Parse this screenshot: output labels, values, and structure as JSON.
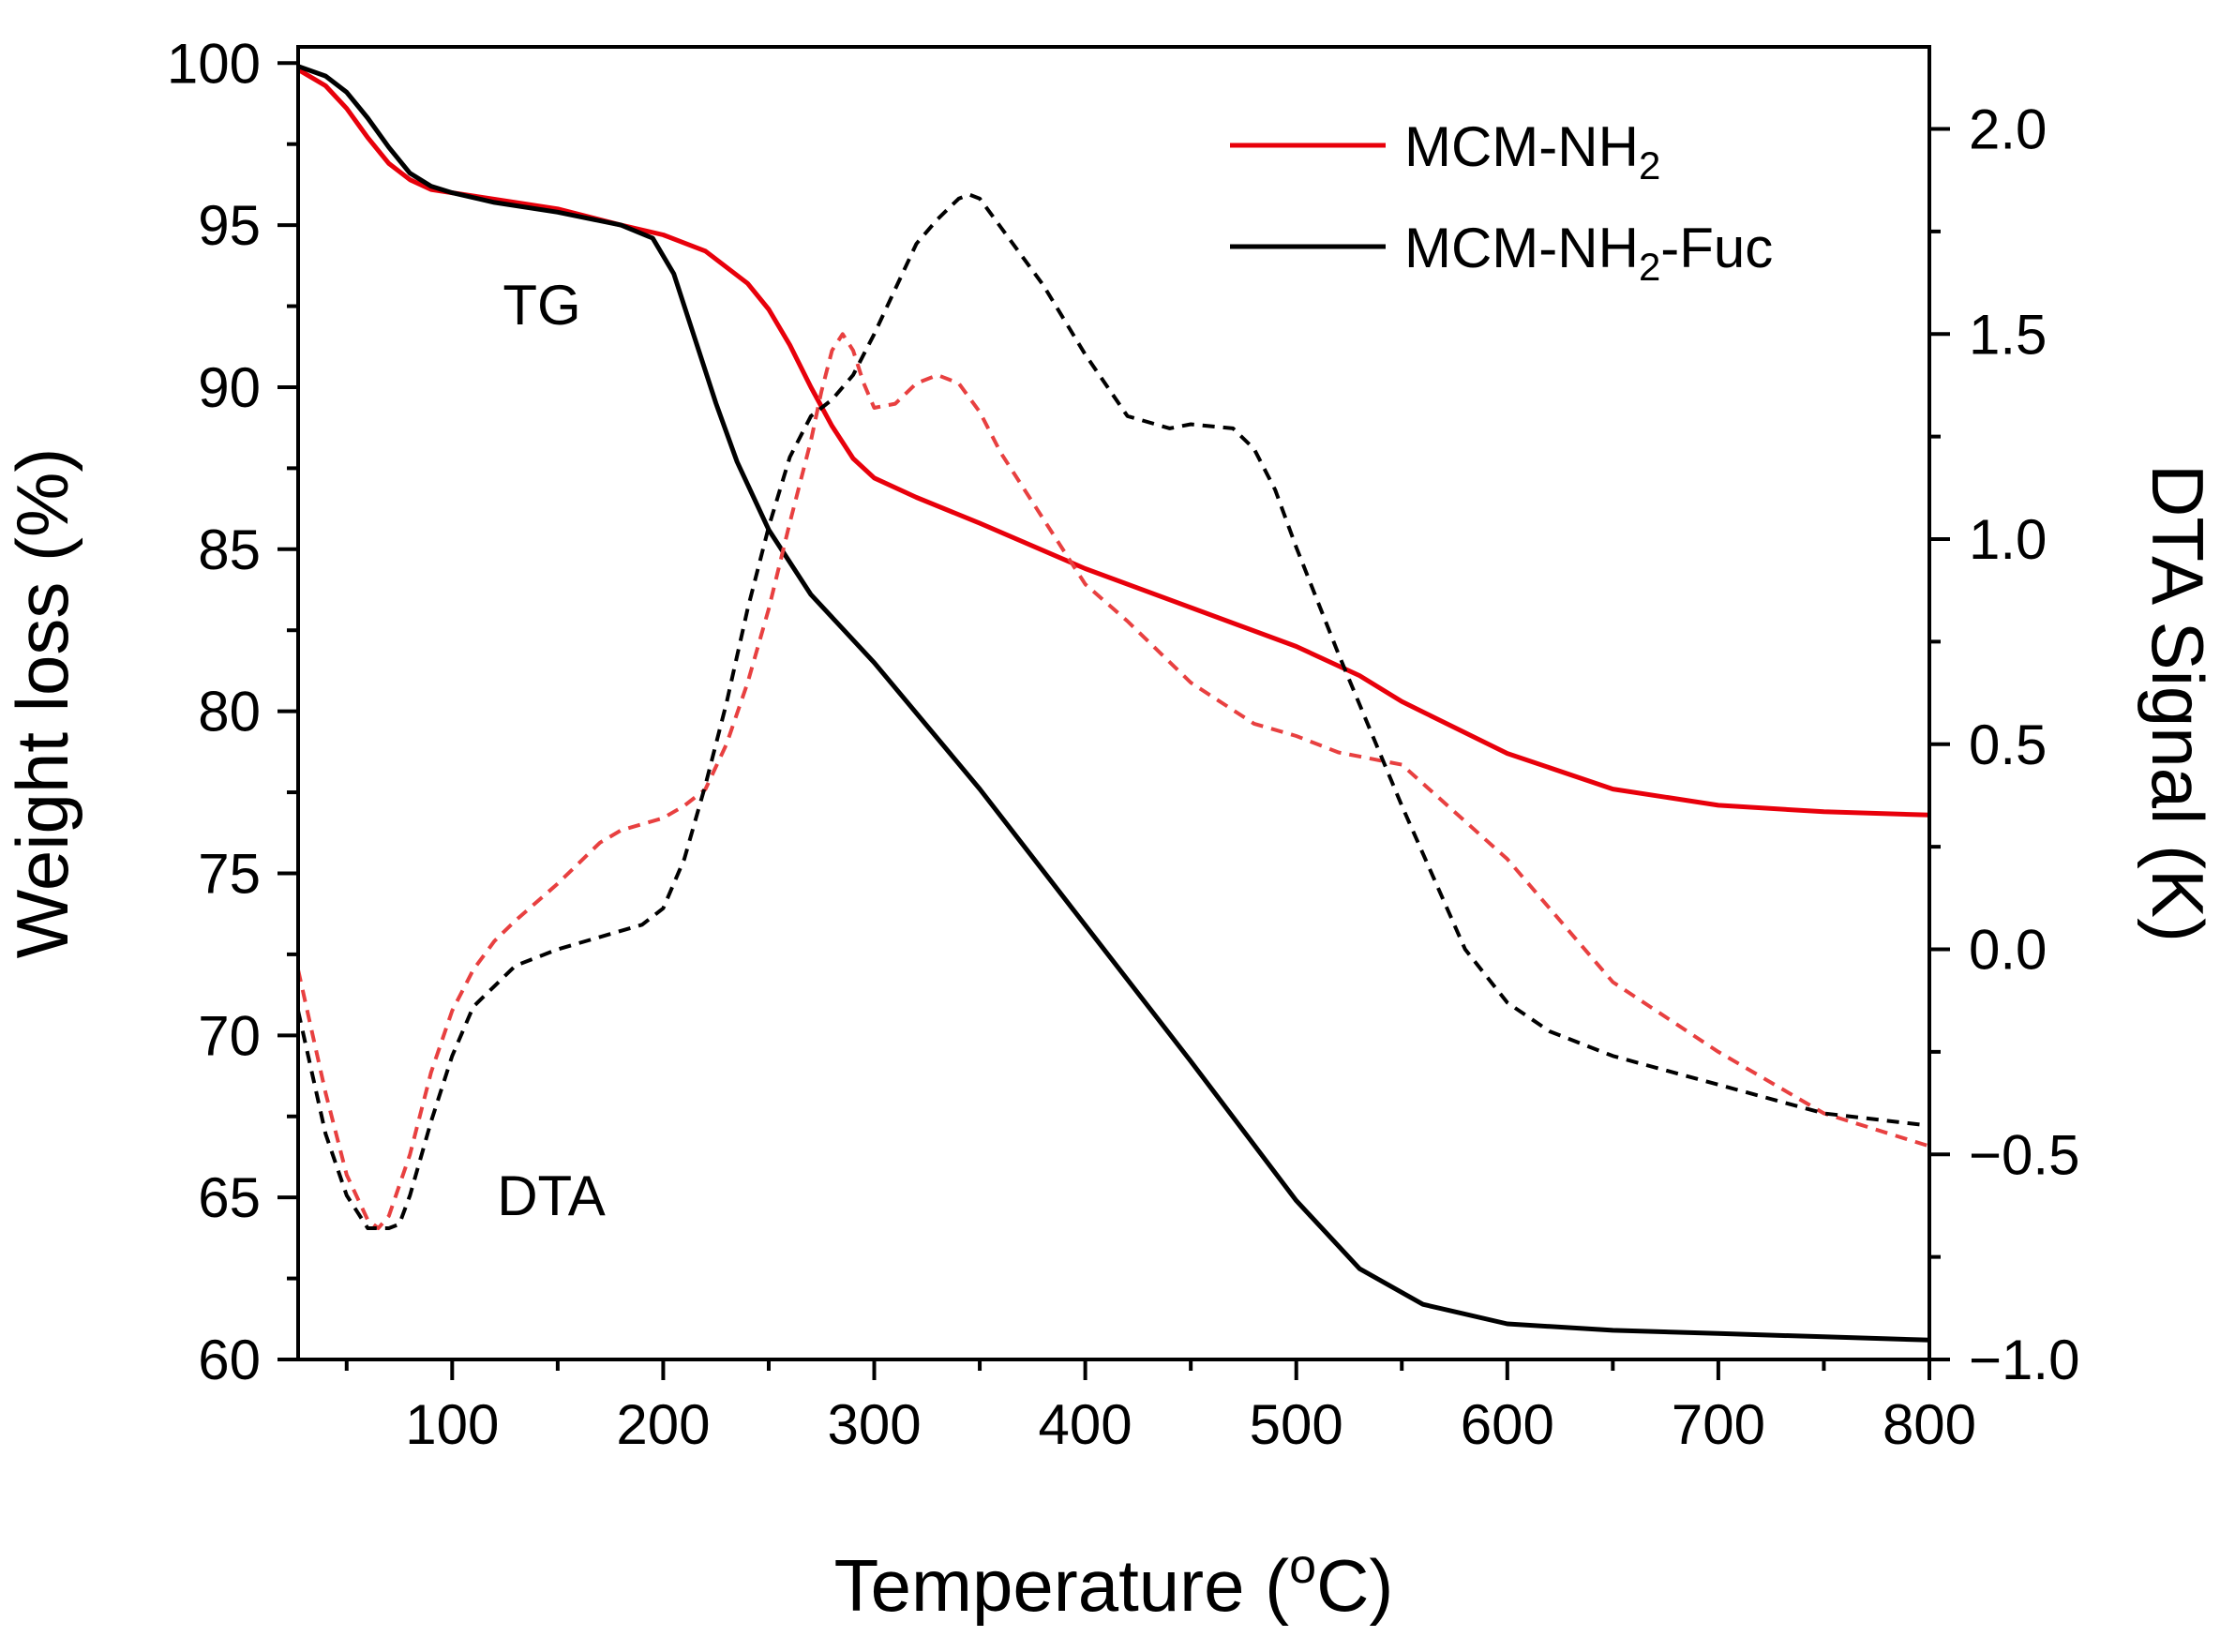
{
  "chart_data": {
    "type": "line",
    "xlabel": "Temperature (°C)",
    "xlabel_parts": [
      "Temperature (",
      "o",
      "C)"
    ],
    "ylabel_left": "Weight loss (%)",
    "ylabel_right": "DTA Signal (K)",
    "xlim": [
      27,
      800
    ],
    "ylim_left": [
      60,
      100.5
    ],
    "ylim_right": [
      -1.0,
      2.2
    ],
    "x_ticks": [
      100,
      200,
      300,
      400,
      500,
      600,
      700,
      800
    ],
    "y_left_ticks": [
      60,
      65,
      70,
      75,
      80,
      85,
      90,
      95,
      100
    ],
    "y_right_ticks": [
      -1.0,
      -0.5,
      0.0,
      0.5,
      1.0,
      1.5,
      2.0
    ],
    "y_right_tick_labels": [
      "−1.0",
      "−0.5",
      "0.0",
      "0.5",
      "1.0",
      "1.5",
      "2.0"
    ],
    "grid": false,
    "legend_position": "top-right",
    "legend": [
      {
        "base": "MCM-NH",
        "sub": "2",
        "suffix": "",
        "color": "#e8000b",
        "style": "solid"
      },
      {
        "base": "MCM-NH",
        "sub": "2",
        "suffix": "-Fuc",
        "color": "#000000",
        "style": "solid"
      }
    ],
    "annotations": {
      "tg": "TG",
      "dta": "DTA"
    },
    "series": [
      {
        "curve": "TG",
        "sample": "MCM-NH2",
        "axis": "left",
        "color": "#e8000b",
        "dash": false,
        "x": [
          27,
          40,
          50,
          60,
          70,
          80,
          90,
          100,
          120,
          150,
          180,
          200,
          220,
          240,
          250,
          260,
          270,
          280,
          290,
          300,
          320,
          350,
          400,
          450,
          500,
          530,
          550,
          600,
          650,
          700,
          750,
          800
        ],
        "y": [
          99.8,
          99.3,
          98.6,
          97.7,
          96.9,
          96.4,
          96.1,
          96.0,
          95.8,
          95.5,
          95.0,
          94.7,
          94.2,
          93.2,
          92.4,
          91.3,
          90.0,
          88.8,
          87.8,
          87.2,
          86.6,
          85.8,
          84.4,
          83.2,
          82.0,
          81.1,
          80.3,
          78.7,
          77.6,
          77.1,
          76.9,
          76.8
        ]
      },
      {
        "curve": "TG",
        "sample": "MCM-NH2-Fuc",
        "axis": "left",
        "color": "#000000",
        "dash": false,
        "x": [
          27,
          40,
          50,
          60,
          70,
          80,
          90,
          100,
          120,
          150,
          180,
          195,
          205,
          215,
          225,
          235,
          250,
          270,
          300,
          350,
          400,
          450,
          500,
          530,
          560,
          600,
          650,
          700,
          750,
          800
        ],
        "y": [
          99.9,
          99.6,
          99.1,
          98.3,
          97.4,
          96.6,
          96.2,
          96.0,
          95.7,
          95.4,
          95.0,
          94.6,
          93.5,
          91.5,
          89.5,
          87.7,
          85.6,
          83.6,
          81.5,
          77.6,
          73.4,
          69.2,
          64.9,
          62.8,
          61.7,
          61.1,
          60.9,
          60.8,
          60.7,
          60.6
        ]
      },
      {
        "curve": "DTA",
        "sample": "MCM-NH2",
        "axis": "right",
        "color": "#e84040",
        "dash": true,
        "x": [
          27,
          40,
          50,
          60,
          65,
          70,
          80,
          90,
          100,
          110,
          120,
          130,
          150,
          170,
          180,
          200,
          210,
          220,
          230,
          240,
          250,
          260,
          270,
          275,
          280,
          285,
          290,
          295,
          300,
          310,
          320,
          330,
          340,
          350,
          360,
          380,
          400,
          420,
          450,
          480,
          500,
          520,
          550,
          600,
          650,
          700,
          750,
          800
        ],
        "y": [
          -0.05,
          -0.35,
          -0.55,
          -0.66,
          -0.68,
          -0.65,
          -0.5,
          -0.3,
          -0.15,
          -0.05,
          0.02,
          0.07,
          0.16,
          0.26,
          0.29,
          0.32,
          0.35,
          0.39,
          0.5,
          0.65,
          0.83,
          1.04,
          1.24,
          1.36,
          1.46,
          1.5,
          1.46,
          1.38,
          1.32,
          1.33,
          1.38,
          1.4,
          1.38,
          1.31,
          1.21,
          1.05,
          0.89,
          0.8,
          0.65,
          0.55,
          0.52,
          0.48,
          0.45,
          0.22,
          -0.08,
          -0.25,
          -0.4,
          -0.48
        ]
      },
      {
        "curve": "DTA",
        "sample": "MCM-NH2-Fuc",
        "axis": "right",
        "color": "#000000",
        "dash": true,
        "x": [
          27,
          40,
          50,
          60,
          70,
          75,
          80,
          90,
          100,
          110,
          120,
          130,
          150,
          170,
          190,
          200,
          210,
          220,
          230,
          240,
          250,
          260,
          270,
          280,
          290,
          300,
          310,
          320,
          330,
          340,
          345,
          350,
          360,
          380,
          400,
          420,
          440,
          450,
          470,
          480,
          490,
          500,
          520,
          550,
          580,
          600,
          620,
          650,
          700,
          750,
          800
        ],
        "y": [
          -0.15,
          -0.45,
          -0.6,
          -0.68,
          -0.68,
          -0.67,
          -0.6,
          -0.42,
          -0.26,
          -0.14,
          -0.09,
          -0.04,
          0.0,
          0.03,
          0.06,
          0.1,
          0.22,
          0.4,
          0.6,
          0.83,
          1.03,
          1.2,
          1.3,
          1.34,
          1.4,
          1.5,
          1.61,
          1.72,
          1.78,
          1.83,
          1.84,
          1.83,
          1.76,
          1.62,
          1.45,
          1.3,
          1.27,
          1.28,
          1.27,
          1.22,
          1.12,
          0.98,
          0.72,
          0.35,
          0.0,
          -0.13,
          -0.2,
          -0.26,
          -0.33,
          -0.4,
          -0.43
        ]
      }
    ]
  }
}
